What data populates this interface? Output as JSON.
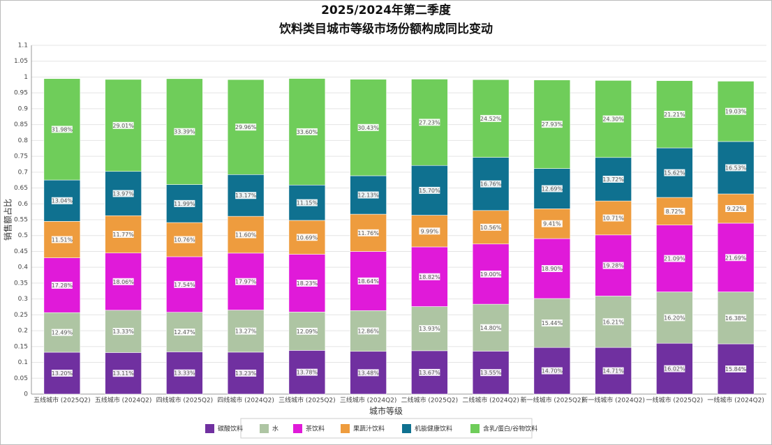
{
  "chart_data": {
    "type": "stacked_bar",
    "title": "2025/2024年第二季度",
    "subtitle": "饮料类目城市等级市场份额构成同比变动",
    "x_label": "城市等级",
    "y_label": "销售额占比",
    "categories": [
      "五线城市 (2025Q2)",
      "五线城市 (2024Q2)",
      "四线城市 (2025Q2)",
      "四线城市 (2024Q2)",
      "三线城市 (2025Q2)",
      "三线城市 (2024Q2)",
      "二线城市 (2025Q2)",
      "二线城市 (2024Q2)",
      "新一线城市 (2025Q2)",
      "新一线城市 (2024Q2)",
      "一线城市 (2025Q2)",
      "一线城市 (2024Q2)"
    ],
    "series": [
      {
        "name": "碳酸饮料",
        "color": "#7030a0",
        "values": [
          0.132,
          0.1311,
          0.1333,
          0.1323,
          0.1378,
          0.1348,
          0.1367,
          0.1355,
          0.147,
          0.1471,
          0.1602,
          0.1584
        ],
        "value_labels": [
          "13.20%",
          "13.11%",
          "13.33%",
          "13.23%",
          "13.78%",
          "13.48%",
          "13.67%",
          "13.55%",
          "14.70%",
          "14.71%",
          "16.02%",
          "15.84%"
        ]
      },
      {
        "name": "水",
        "color": "#aec5a3",
        "values": [
          0.1249,
          0.1333,
          0.1247,
          0.1327,
          0.1209,
          0.1286,
          0.1393,
          0.148,
          0.1544,
          0.1621,
          0.162,
          0.1638
        ],
        "value_labels": [
          "12.49%",
          "13.33%",
          "12.47%",
          "13.27%",
          "12.09%",
          "12.86%",
          "13.93%",
          "14.80%",
          "15.44%",
          "16.21%",
          "16.20%",
          "16.38%"
        ]
      },
      {
        "name": "茶饮料",
        "color": "#e01ad9",
        "values": [
          0.1728,
          0.1806,
          0.1754,
          0.1797,
          0.1823,
          0.1864,
          0.1882,
          0.19,
          0.189,
          0.1928,
          0.2109,
          0.2169
        ],
        "value_labels": [
          "17.28%",
          "18.06%",
          "17.54%",
          "17.97%",
          "18.23%",
          "18.64%",
          "18.82%",
          "19.00%",
          "18.90%",
          "19.28%",
          "21.09%",
          "21.69%"
        ]
      },
      {
        "name": "果蔬汁饮料",
        "color": "#ee9c3e",
        "values": [
          0.1151,
          0.1177,
          0.1076,
          0.116,
          0.1069,
          0.1176,
          0.0999,
          0.1056,
          0.0941,
          0.1071,
          0.0872,
          0.0922
        ],
        "value_labels": [
          "11.51%",
          "11.77%",
          "10.76%",
          "11.60%",
          "10.69%",
          "11.76%",
          "9.99%",
          "10.56%",
          "9.41%",
          "10.71%",
          "8.72%",
          "9.22%"
        ]
      },
      {
        "name": "机能健康饮料",
        "color": "#0f7190",
        "values": [
          0.1304,
          0.1397,
          0.1199,
          0.1317,
          0.1115,
          0.1213,
          0.157,
          0.1676,
          0.1269,
          0.1372,
          0.1562,
          0.1653
        ],
        "value_labels": [
          "13.04%",
          "13.97%",
          "11.99%",
          "13.17%",
          "11.15%",
          "12.13%",
          "15.70%",
          "16.76%",
          "12.69%",
          "13.72%",
          "15.62%",
          "16.53%"
        ]
      },
      {
        "name": "含乳/蛋白/谷物饮料",
        "color": "#6fcd5a",
        "values": [
          0.3198,
          0.2901,
          0.3339,
          0.2996,
          0.336,
          0.3043,
          0.2723,
          0.2452,
          0.2793,
          0.243,
          0.2121,
          0.1903
        ],
        "value_labels": [
          "31.98%",
          "29.01%",
          "33.39%",
          "29.96%",
          "33.60%",
          "30.43%",
          "27.23%",
          "24.52%",
          "27.93%",
          "24.30%",
          "21.21%",
          "19.03%"
        ]
      }
    ],
    "ylim": [
      0,
      1.1
    ],
    "yticks": [
      0,
      0.05,
      0.1,
      0.15,
      0.2,
      0.25,
      0.3,
      0.35,
      0.4,
      0.45,
      0.5,
      0.55,
      0.6,
      0.65,
      0.7,
      0.75,
      0.8,
      0.85,
      0.9,
      0.95,
      1,
      1.05,
      1.1
    ],
    "grid": true,
    "legend": "bottom"
  }
}
